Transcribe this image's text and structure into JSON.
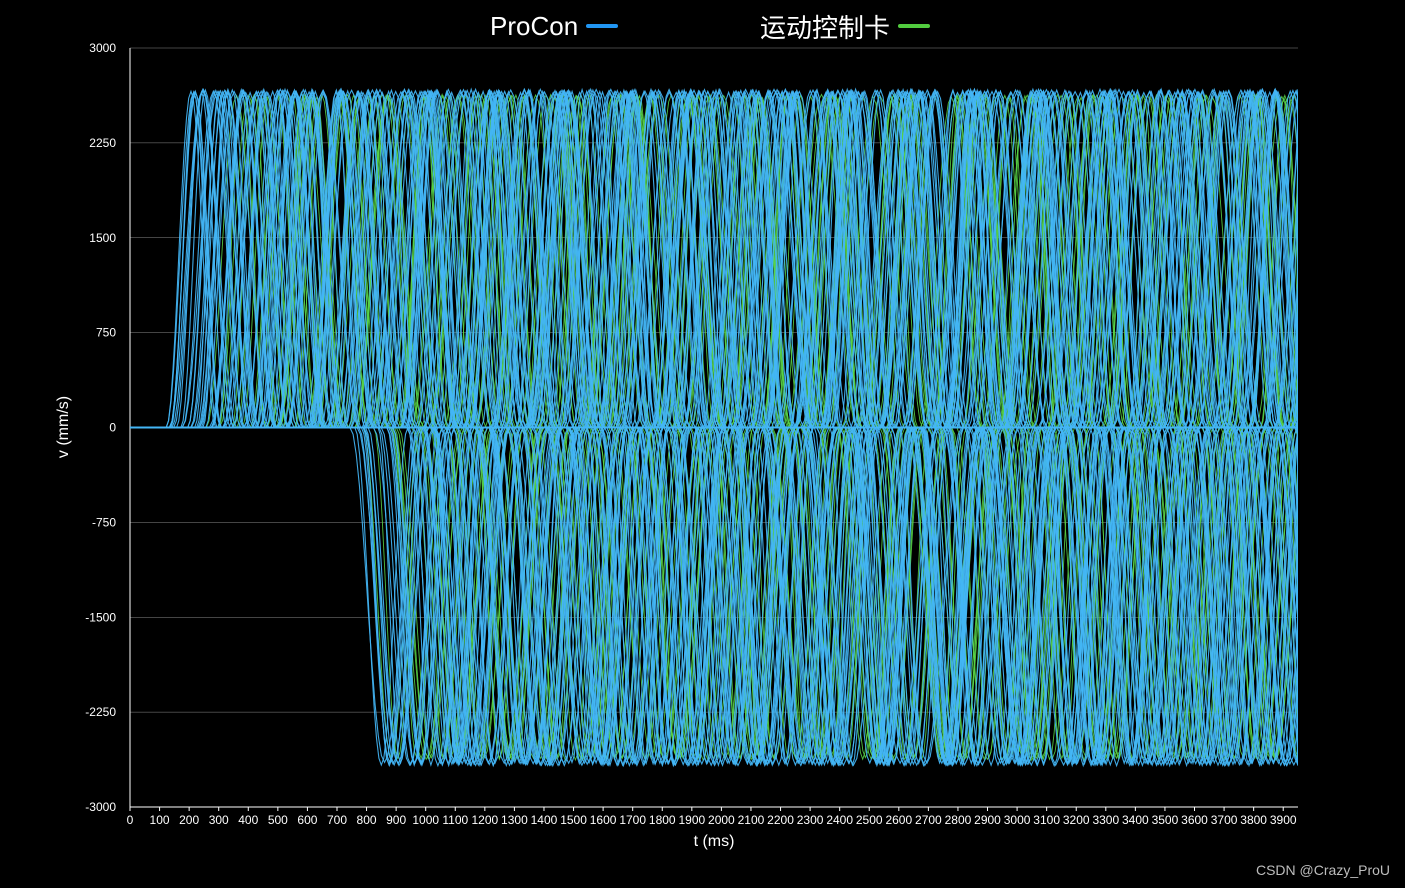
{
  "legend": {
    "procon_label": "ProCon",
    "card_label": "运动控制卡"
  },
  "watermark": "CSDN @Crazy_ProU",
  "colors": {
    "background": "#000000",
    "procon": "#43b6f6",
    "card": "#59d548",
    "procon_swatch": "#2196f3",
    "card_swatch": "#52cc3f",
    "grid": "#8a8a8a",
    "text": "#ffffff"
  },
  "chart_data": {
    "type": "line",
    "title": "",
    "xlabel": "t (ms)",
    "ylabel": "v (mm/s)",
    "xlim": [
      0,
      3950
    ],
    "ylim": [
      -3000,
      3000
    ],
    "x_ticks": [
      0,
      100,
      200,
      300,
      400,
      500,
      600,
      700,
      800,
      900,
      1000,
      1100,
      1200,
      1300,
      1400,
      1500,
      1600,
      1700,
      1800,
      1900,
      2000,
      2100,
      2200,
      2300,
      2400,
      2500,
      2600,
      2700,
      2800,
      2900,
      3000,
      3100,
      3200,
      3300,
      3400,
      3500,
      3600,
      3700,
      3800,
      3900
    ],
    "x_tick_labels": [
      "0",
      "100",
      "200",
      "300",
      "400",
      "500",
      "600",
      "700",
      "800",
      "900",
      "1000",
      "1100",
      "1200",
      "1300",
      "1400",
      "1500",
      "1600",
      "1700",
      "1800",
      "1900",
      "2000",
      "2100",
      "2200",
      "2300",
      "2400",
      "2500",
      "2600",
      "2700",
      "2800",
      "2900",
      "3000",
      "3100",
      "3200",
      "3300",
      "3400",
      "3500",
      "3600",
      "3700",
      "3800",
      "3900"
    ],
    "y_ticks": [
      3000,
      2250,
      1500,
      750,
      0,
      -750,
      -1500,
      -2250,
      -3000
    ],
    "y_tick_labels": [
      "3000",
      "2250",
      "1500",
      "750",
      "0",
      "-750",
      "-1500",
      "-2250",
      "-3000"
    ],
    "grid": true,
    "legend_position": "top-center",
    "series": [
      {
        "name": "ProCon",
        "pattern": "many overlapping bell-shaped velocity pulses",
        "peak_positive": 2660,
        "peak_negative": -2660,
        "positive_pulses_start": 120,
        "negative_pulses_start": 730,
        "pulse_width_ms": [
          150,
          250
        ]
      },
      {
        "name": "运动控制卡",
        "pattern": "many overlapping bell-shaped velocity pulses",
        "peak_positive": 2620,
        "peak_negative": -2620,
        "positive_pulses_start": 250,
        "negative_pulses_start": 760,
        "pulse_width_ms": [
          150,
          250
        ]
      }
    ]
  }
}
